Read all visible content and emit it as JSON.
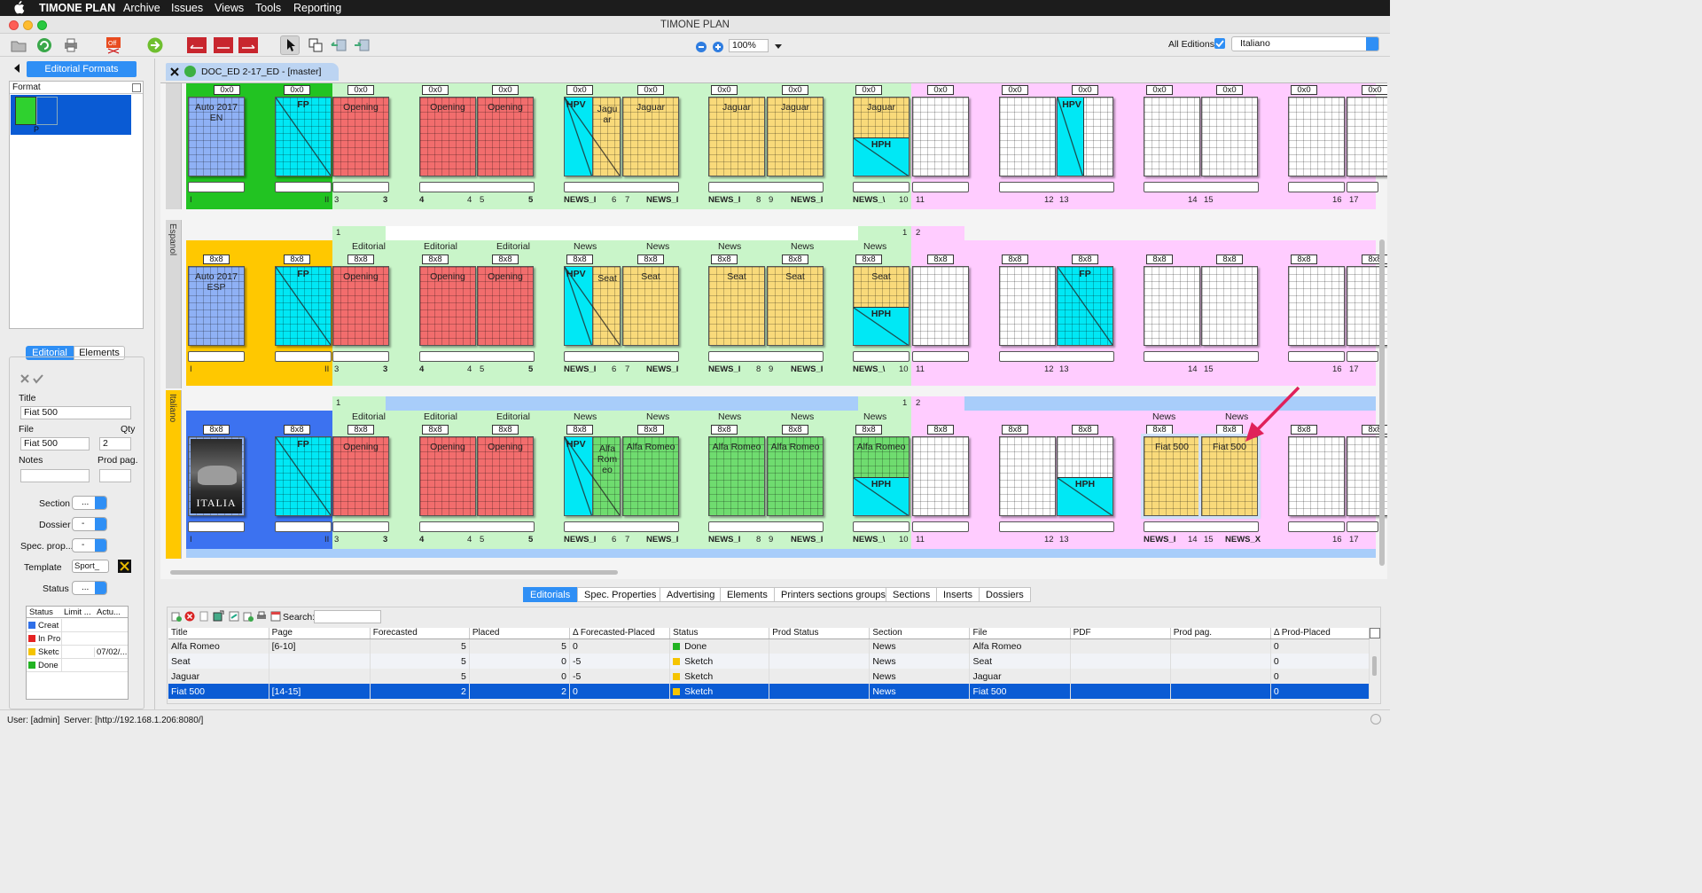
{
  "menubar": {
    "app": "TIMONE PLAN",
    "items": [
      "Archive",
      "Issues",
      "Views",
      "Tools",
      "Reporting"
    ]
  },
  "window": {
    "title": "TIMONE PLAN"
  },
  "toolbar": {
    "zoom": "100%",
    "all_editions_label": "All Editions",
    "language": "Italiano"
  },
  "left": {
    "tab_title": "Editorial Formats",
    "format_header": "Format",
    "format_thumb_label": "P",
    "tabs": [
      "Editorial",
      "Elements"
    ],
    "fields": {
      "title_label": "Title",
      "title_value": "Fiat 500",
      "file_label": "File",
      "file_value": "Fiat 500",
      "qty_label": "Qty",
      "qty_value": "2",
      "notes_label": "Notes",
      "prodpag_label": "Prod pag.",
      "section_label": "Section",
      "dossier_label": "Dossier",
      "specprop_label": "Spec. prop...",
      "template_label": "Template",
      "template_value": "Sport_",
      "status_label": "Status",
      "spin_dots": "...",
      "spin_dash": "-"
    },
    "status_table": {
      "headers": [
        "Status",
        "Limit ...",
        "Actu..."
      ],
      "rows": [
        {
          "name": "Creat",
          "color": "#2f6fe8",
          "actual": ""
        },
        {
          "name": "In Pro",
          "color": "#e52222",
          "actual": ""
        },
        {
          "name": "Sketc",
          "color": "#f5c400",
          "actual": "07/02/..."
        },
        {
          "name": "Done",
          "color": "#22b322",
          "actual": ""
        }
      ]
    }
  },
  "document": {
    "tab": "DOC_ED 2-17_ED - [master]"
  },
  "rows": [
    {
      "label": "",
      "lang": "EN",
      "cover_title": "Auto 2017 EN"
    },
    {
      "label": "Espanol",
      "lang": "ESP",
      "cover_title": "Auto 2017 ESP"
    },
    {
      "label": "Italiano",
      "lang": "IT",
      "cover_title": "ITALIA"
    }
  ],
  "plan_text": {
    "hdr": "8x8",
    "hdr_top": "0x0",
    "fp": "FP",
    "opening": "Opening",
    "hpv": "HPV",
    "hph": "HPH",
    "jaguar": "Jaguar",
    "jaguar_split": "Jagu ar",
    "seat": "Seat",
    "alfa": "Alfa Romeo",
    "alfa_split": "Alfa Rom eo",
    "fiat": "Fiat 500",
    "sec_editorial": "Editorial",
    "sec_news": "News",
    "news_i": "NEWS_I",
    "news_v": "NEWS_\\",
    "news_x": "NEWS_X",
    "pages": [
      "I",
      "II",
      "3",
      "4",
      "5",
      "6",
      "7",
      "8",
      "9",
      "10",
      "11",
      "12",
      "13",
      "14",
      "15",
      "16",
      "17"
    ],
    "one": "1",
    "two": "2"
  },
  "bottom": {
    "tabs": [
      "Editorials",
      "Spec. Properties",
      "Advertising",
      "Elements",
      "Printers sections groups",
      "Sections",
      "Inserts",
      "Dossiers"
    ],
    "search_label": "Search:",
    "columns": [
      "Title",
      "Page",
      "Forecasted",
      "Placed",
      "Δ Forecasted-Placed",
      "Status",
      "Prod Status",
      "Section",
      "File",
      "PDF",
      "Prod pag.",
      "Δ Prod-Placed"
    ],
    "rows": [
      {
        "title": "Alfa Romeo",
        "page": "[6-10]",
        "forecasted": "5",
        "placed": "5",
        "delta": "0",
        "status": "Done",
        "status_color": "#22b322",
        "section": "News",
        "file": "Alfa Romeo",
        "dprod": "0"
      },
      {
        "title": "Seat",
        "page": "",
        "forecasted": "5",
        "placed": "0",
        "delta": "-5",
        "status": "Sketch",
        "status_color": "#f5c400",
        "section": "News",
        "file": "Seat",
        "dprod": "0"
      },
      {
        "title": "Jaguar",
        "page": "",
        "forecasted": "5",
        "placed": "0",
        "delta": "-5",
        "status": "Sketch",
        "status_color": "#f5c400",
        "section": "News",
        "file": "Jaguar",
        "dprod": "0"
      },
      {
        "title": "Fiat 500",
        "page": "[14-15]",
        "forecasted": "2",
        "placed": "2",
        "delta": "0",
        "status": "Sketch",
        "status_color": "#f5c400",
        "section": "News",
        "file": "Fiat 500",
        "dprod": "0"
      }
    ]
  },
  "statusbar": {
    "user": "User: [admin]",
    "server": "Server: [http://192.168.1.206:8080/]"
  }
}
